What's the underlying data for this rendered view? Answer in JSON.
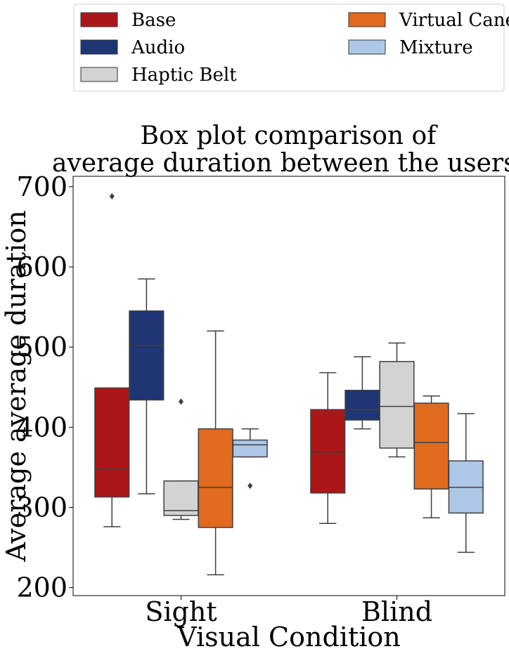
{
  "chart_data": {
    "type": "box",
    "title": [
      "Box plot comparison of",
      "average duration between the users."
    ],
    "xlabel": "Visual Condition",
    "ylabel": "Average average duration",
    "ylim": [
      190,
      713
    ],
    "yticks": [
      200,
      300,
      400,
      500,
      600,
      700
    ],
    "categories": [
      "Sight",
      "Blind"
    ],
    "legend": {
      "placement": "top",
      "columns": 2
    },
    "series": [
      {
        "name": "Base",
        "color": "#ab1718",
        "boxes": [
          {
            "category": "Sight",
            "whislo": 276,
            "q1": 313,
            "med": 348,
            "q3": 449,
            "whishi": 449,
            "fliers": [
              688
            ]
          },
          {
            "category": "Blind",
            "whislo": 280,
            "q1": 318,
            "med": 369,
            "q3": 422,
            "whishi": 468,
            "fliers": []
          }
        ]
      },
      {
        "name": "Audio",
        "color": "#1f3674",
        "boxes": [
          {
            "category": "Sight",
            "whislo": 317,
            "q1": 434,
            "med": 502,
            "q3": 545,
            "whishi": 585,
            "fliers": []
          },
          {
            "category": "Blind",
            "whislo": 398,
            "q1": 409,
            "med": 422,
            "q3": 446,
            "whishi": 488,
            "fliers": []
          }
        ]
      },
      {
        "name": "Haptic Belt",
        "color": "#d3d3d3",
        "boxes": [
          {
            "category": "Sight",
            "whislo": 285,
            "q1": 290,
            "med": 296,
            "q3": 333,
            "whishi": 333,
            "fliers": [
              432
            ]
          },
          {
            "category": "Blind",
            "whislo": 363,
            "q1": 374,
            "med": 426,
            "q3": 482,
            "whishi": 505,
            "fliers": []
          }
        ]
      },
      {
        "name": "Virtual Cane",
        "color": "#e06b1e",
        "boxes": [
          {
            "category": "Sight",
            "whislo": 216,
            "q1": 275,
            "med": 325,
            "q3": 398,
            "whishi": 520,
            "fliers": []
          },
          {
            "category": "Blind",
            "whislo": 287,
            "q1": 323,
            "med": 381,
            "q3": 430,
            "whishi": 439,
            "fliers": []
          }
        ]
      },
      {
        "name": "Mixture",
        "color": "#aec7e6",
        "boxes": [
          {
            "category": "Sight",
            "whislo": 363,
            "q1": 363,
            "med": 378,
            "q3": 384,
            "whishi": 398,
            "fliers": [
              327
            ]
          },
          {
            "category": "Blind",
            "whislo": 244,
            "q1": 293,
            "med": 325,
            "q3": 358,
            "whishi": 417,
            "fliers": []
          }
        ]
      }
    ],
    "grid": false
  }
}
